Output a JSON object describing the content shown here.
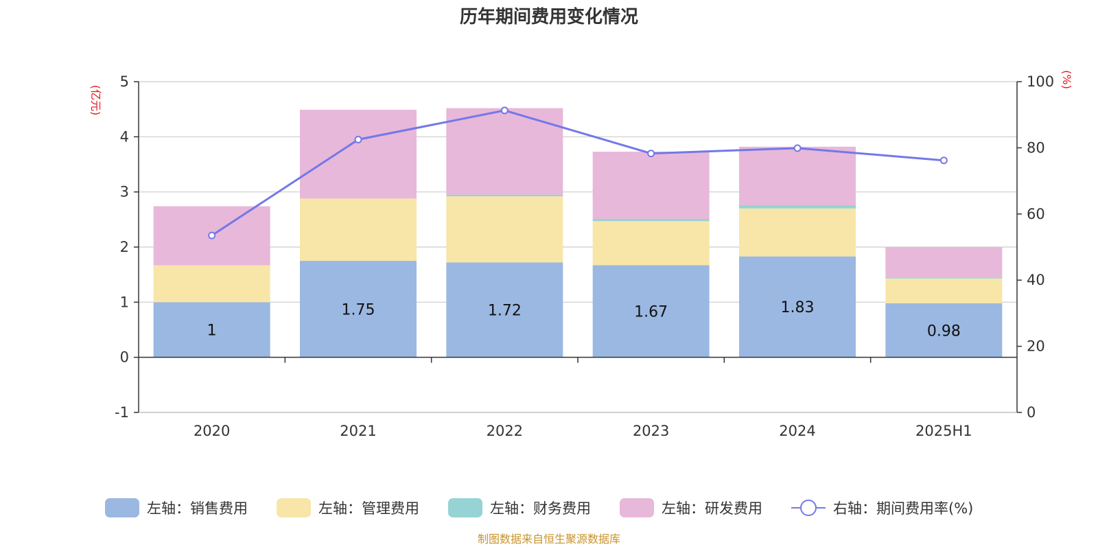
{
  "chart_data": {
    "type": "bar",
    "title": "历年期间费用变化情况",
    "categories": [
      "2020",
      "2021",
      "2022",
      "2023",
      "2024",
      "2025H1"
    ],
    "stacked": true,
    "left_axis": {
      "unit": "(亿元)",
      "ylim": [
        -1,
        5
      ],
      "ticks": [
        "5",
        "4",
        "3",
        "2",
        "1",
        "0",
        "-1"
      ]
    },
    "right_axis": {
      "unit": "(%)",
      "ylim": [
        0,
        100
      ],
      "ticks": [
        "100",
        "80",
        "60",
        "40",
        "20",
        "0"
      ]
    },
    "series": [
      {
        "name": "左轴：销售费用",
        "axis": "left",
        "kind": "bar",
        "color": "#9bb8e2",
        "values": [
          1,
          1.75,
          1.72,
          1.67,
          1.83,
          0.98
        ],
        "labels": [
          "1",
          "1.75",
          "1.72",
          "1.67",
          "1.83",
          "0.98"
        ]
      },
      {
        "name": "左轴：管理费用",
        "axis": "left",
        "kind": "bar",
        "color": "#f8e6a8",
        "values": [
          0.67,
          1.13,
          1.2,
          0.8,
          0.87,
          0.45
        ]
      },
      {
        "name": "左轴：财务费用",
        "axis": "left",
        "kind": "bar",
        "color": "#95d3d4",
        "values": [
          0,
          0,
          0.03,
          0.04,
          0.06,
          0.02
        ]
      },
      {
        "name": "左轴：研发费用",
        "axis": "left",
        "kind": "bar",
        "color": "#e7b8d9",
        "values": [
          1.07,
          1.61,
          1.57,
          1.22,
          1.06,
          0.55
        ]
      },
      {
        "name": "右轴：期间费用率(%)",
        "axis": "right",
        "kind": "line",
        "color": "#7477e8",
        "values": [
          53.5,
          82.5,
          91.3,
          78.3,
          79.9,
          76.2
        ]
      }
    ],
    "grid": true,
    "legend_position": "bottom"
  },
  "source_note": "制图数据来自恒生聚源数据库"
}
